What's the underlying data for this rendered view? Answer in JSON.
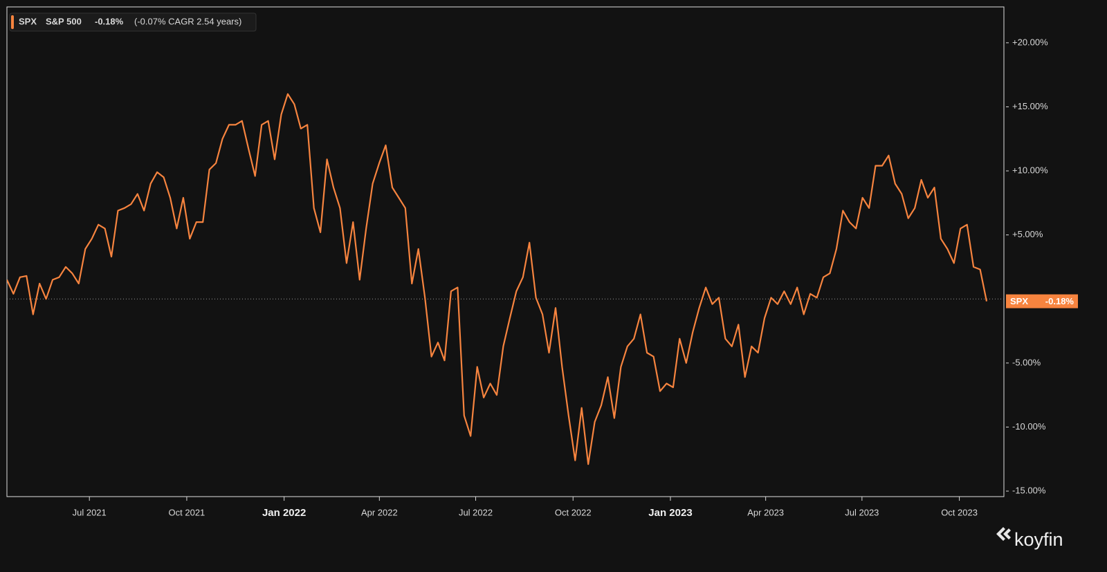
{
  "chart_data": {
    "type": "line",
    "brand": "koyfin",
    "series": [
      {
        "name": "SPX",
        "full_name": "S&P 500",
        "change_label": "-0.18%",
        "cagr_text": "(-0.07% CAGR 2.54 years)",
        "color": "#f7843f",
        "values": [
          1.5,
          0.4,
          1.7,
          1.8,
          -1.2,
          1.2,
          0,
          1.5,
          1.7,
          2.5,
          2.0,
          1.2,
          3.9,
          4.7,
          5.8,
          5.5,
          3.3,
          6.9,
          7.1,
          7.4,
          8.2,
          6.9,
          9.0,
          9.9,
          9.5,
          7.9,
          5.5,
          7.9,
          4.7,
          6.0,
          6.0,
          10.1,
          10.6,
          12.5,
          13.6,
          13.6,
          13.9,
          11.7,
          9.6,
          13.6,
          13.9,
          10.9,
          14.4,
          16.0,
          15.2,
          13.3,
          13.6,
          7.1,
          5.2,
          10.9,
          8.7,
          7.1,
          2.8,
          6.0,
          1.5,
          5.5,
          9.0,
          10.6,
          12.0,
          8.7,
          7.9,
          7.1,
          1.2,
          3.9,
          0.1,
          -4.5,
          -3.4,
          -4.8,
          0.6,
          0.9,
          -9.1,
          -10.7,
          -5.3,
          -7.7,
          -6.6,
          -7.5,
          -3.7,
          -1.5,
          0.6,
          1.7,
          4.4,
          0.1,
          -1.2,
          -4.2,
          -0.7,
          -5.3,
          -9.1,
          -12.6,
          -8.5,
          -12.9,
          -9.6,
          -8.3,
          -6.1,
          -9.3,
          -5.3,
          -3.7,
          -3.1,
          -1.2,
          -4.2,
          -4.5,
          -7.2,
          -6.6,
          -6.9,
          -3.1,
          -5.0,
          -2.6,
          -0.7,
          0.9,
          -0.4,
          0.1,
          -3.1,
          -3.7,
          -2.0,
          -6.1,
          -3.7,
          -4.2,
          -1.5,
          0.1,
          -0.4,
          0.6,
          -0.4,
          0.9,
          -1.2,
          0.4,
          0.1,
          1.7,
          2.0,
          3.9,
          6.9,
          6.0,
          5.5,
          7.9,
          7.1,
          10.4,
          10.4,
          11.2,
          9.0,
          8.2,
          6.3,
          7.1,
          9.3,
          7.9,
          8.7,
          4.7,
          3.9,
          2.8,
          5.5,
          5.8,
          2.5,
          2.3,
          -0.18
        ]
      }
    ],
    "reference_line": 0,
    "xlim": [
      "2021-04",
      "2023-11"
    ],
    "xticks": [
      {
        "value": "2021-07",
        "label": "Jul 2021"
      },
      {
        "value": "2021-10",
        "label": "Oct 2021"
      },
      {
        "value": "2022-01",
        "label": "Jan 2022"
      },
      {
        "value": "2022-04",
        "label": "Apr 2022"
      },
      {
        "value": "2022-07",
        "label": "Jul 2022"
      },
      {
        "value": "2022-10",
        "label": "Oct 2022"
      },
      {
        "value": "2023-01",
        "label": "Jan 2023"
      },
      {
        "value": "2023-04",
        "label": "Apr 2023"
      },
      {
        "value": "2023-07",
        "label": "Jul 2023"
      },
      {
        "value": "2023-10",
        "label": "Oct 2023"
      }
    ],
    "ylim": [
      -15.43,
      22.8
    ],
    "yticks": [
      {
        "value": 20,
        "label": "+20.00%"
      },
      {
        "value": 15,
        "label": "+15.00%"
      },
      {
        "value": 10,
        "label": "+10.00%"
      },
      {
        "value": 5,
        "label": "+5.00%"
      },
      {
        "value": -5,
        "label": "-5.00%"
      },
      {
        "value": -10,
        "label": "-10.00%"
      },
      {
        "value": -15,
        "label": "-15.00%"
      }
    ]
  }
}
